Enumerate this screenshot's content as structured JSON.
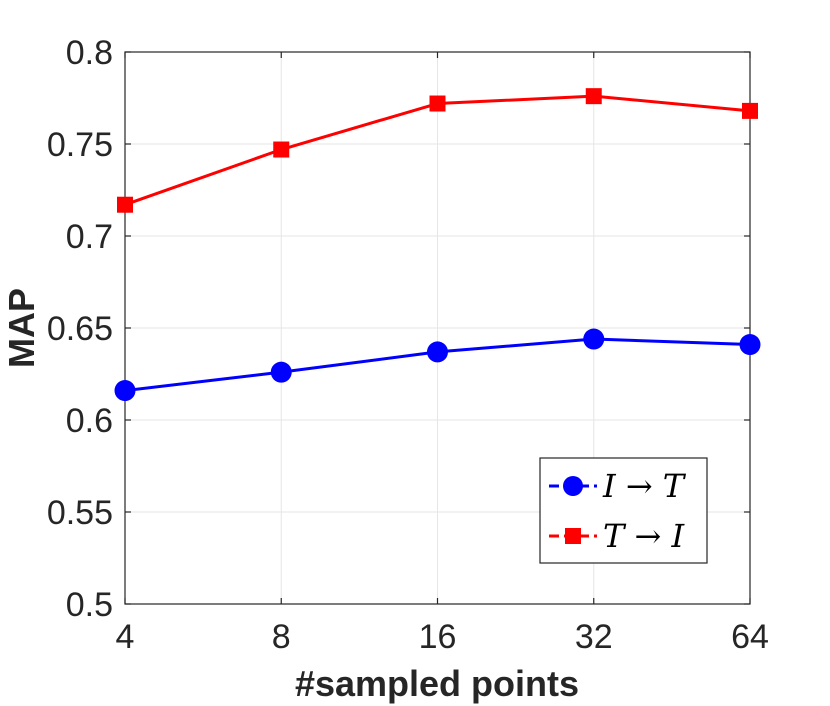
{
  "chart_data": {
    "type": "line",
    "title": "",
    "xlabel": "#sampled points",
    "ylabel": "MAP",
    "x": [
      "4",
      "8",
      "16",
      "32",
      "64"
    ],
    "ylim": [
      0.5,
      0.8
    ],
    "yticks": [
      "0.5",
      "0.55",
      "0.6",
      "0.65",
      "0.7",
      "0.75",
      "0.8"
    ],
    "grid": true,
    "legend_position": "bottom-right",
    "series": [
      {
        "name": "I → T",
        "color": "#0000ff",
        "marker": "circle",
        "values": [
          0.616,
          0.626,
          0.637,
          0.644,
          0.641
        ]
      },
      {
        "name": "T → I",
        "color": "#ff0000",
        "marker": "square",
        "values": [
          0.717,
          0.747,
          0.772,
          0.776,
          0.768
        ]
      }
    ]
  }
}
